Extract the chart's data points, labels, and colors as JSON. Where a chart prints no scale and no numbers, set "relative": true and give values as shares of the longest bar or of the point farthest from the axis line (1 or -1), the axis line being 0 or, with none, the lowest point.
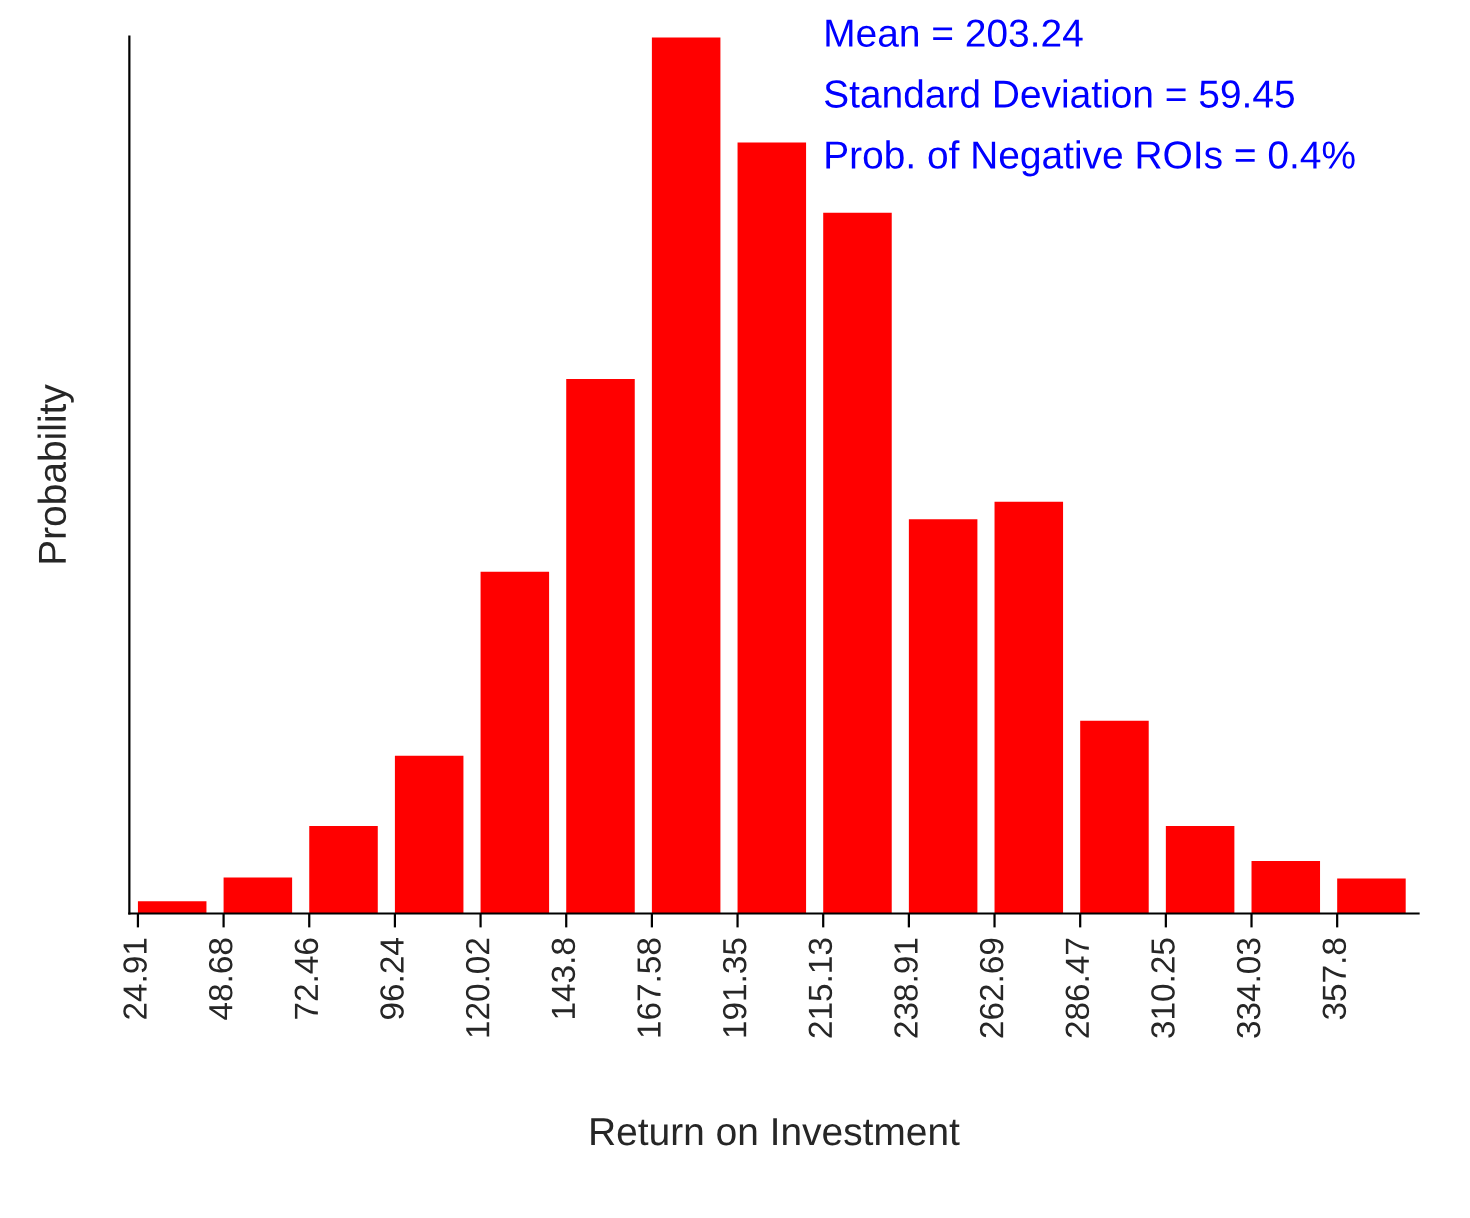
{
  "chart_data": {
    "type": "bar",
    "relative": true,
    "xlabel": "Return on Investment",
    "ylabel": "Probability",
    "color": "#ff0000",
    "categories": [
      "24.91",
      "48.68",
      "72.46",
      "96.24",
      "120.02",
      "143.8",
      "167.58",
      "191.35",
      "215.13",
      "238.91",
      "262.69",
      "286.47",
      "310.25",
      "334.03",
      "357.8"
    ],
    "values": [
      0.014,
      0.041,
      0.1,
      0.18,
      0.39,
      0.61,
      1,
      0.88,
      0.8,
      0.45,
      0.47,
      0.22,
      0.1,
      0.06,
      0.04
    ],
    "annotations": [
      "Mean = 203.24",
      "Standard Deviation = 59.45",
      "Prob. of Negative ROIs = 0.4%"
    ],
    "grid": false,
    "legend": false
  }
}
